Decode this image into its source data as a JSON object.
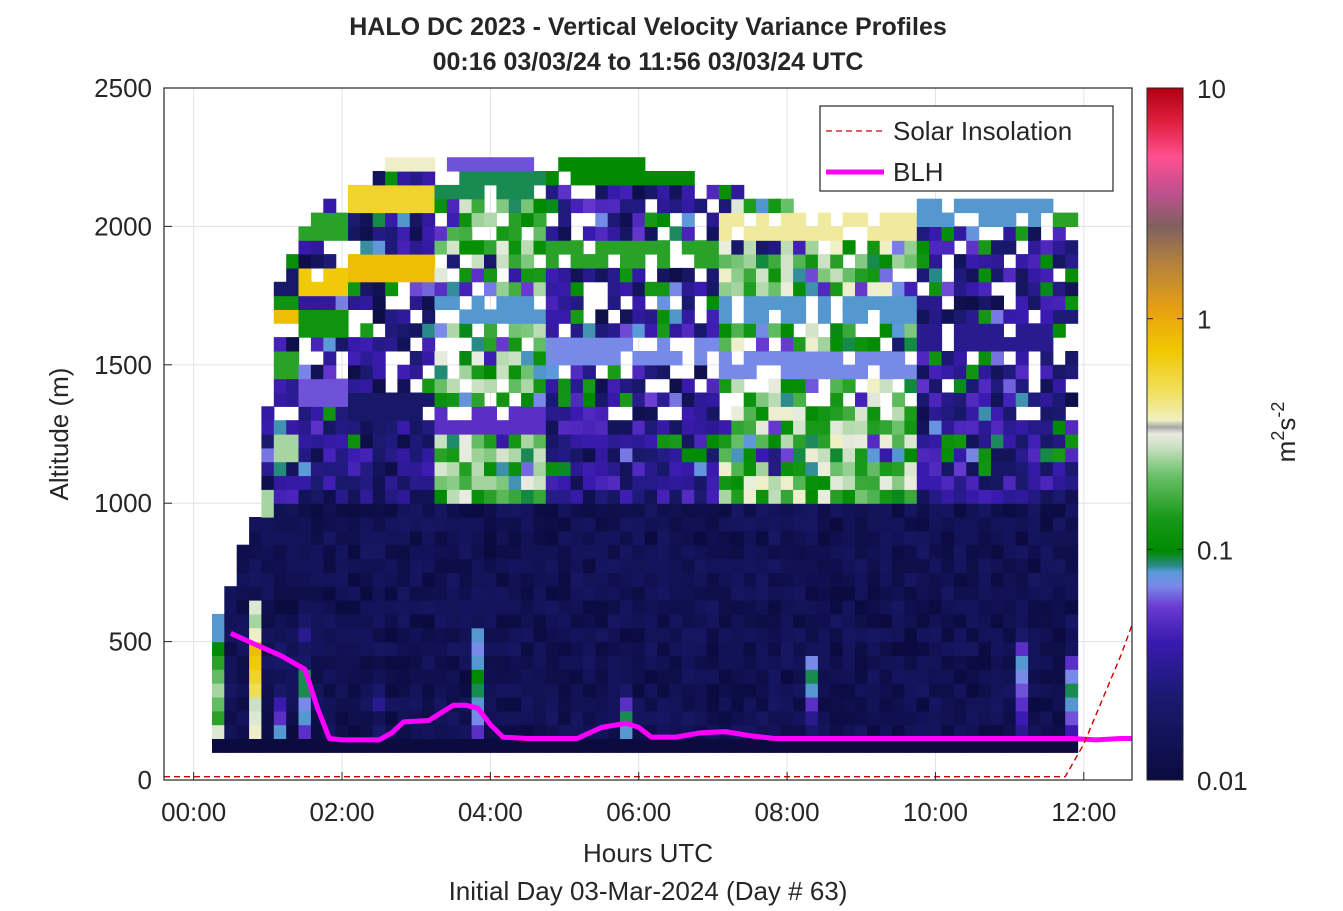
{
  "chart_data": {
    "type": "heatmap",
    "title_line1": "HALO DC 2023 - Vertical Velocity Variance Profiles",
    "title_line2": "00:16 03/03/24 to 11:56 03/03/24  UTC",
    "xlabel": "Hours UTC",
    "subtitle": "Initial Day 03-Mar-2024 (Day # 63)",
    "ylabel": "Altitude (m)",
    "colorbar_label": "m²s⁻²",
    "colorbar_label_base": "m",
    "colorbar_label_sup1": "2",
    "colorbar_label_mid": "s",
    "colorbar_label_sup2": "-2",
    "x_range_hours": [
      -0.4,
      12.65
    ],
    "y_range_m": [
      0,
      2500
    ],
    "x_ticks": [
      {
        "value": 0,
        "label": "00:00"
      },
      {
        "value": 2,
        "label": "02:00"
      },
      {
        "value": 4,
        "label": "04:00"
      },
      {
        "value": 6,
        "label": "06:00"
      },
      {
        "value": 8,
        "label": "08:00"
      },
      {
        "value": 10,
        "label": "10:00"
      },
      {
        "value": 12,
        "label": "12:00"
      }
    ],
    "y_ticks": [
      {
        "value": 0,
        "label": "0"
      },
      {
        "value": 500,
        "label": "500"
      },
      {
        "value": 1000,
        "label": "1000"
      },
      {
        "value": 1500,
        "label": "1500"
      },
      {
        "value": 2000,
        "label": "2000"
      },
      {
        "value": 2500,
        "label": "2500"
      }
    ],
    "colorbar_scale": "log",
    "colorbar_range": [
      0.01,
      10
    ],
    "colorbar_ticks": [
      {
        "value": 0.01,
        "label": "0.01"
      },
      {
        "value": 0.1,
        "label": "0.1"
      },
      {
        "value": 1,
        "label": "1"
      },
      {
        "value": 10,
        "label": "10"
      }
    ],
    "grid": true,
    "legend_position": "top-right",
    "legend": [
      {
        "name": "Solar Insolation",
        "style": "dashed",
        "color": "#cc0000"
      },
      {
        "name": "BLH",
        "style": "solid",
        "color": "#ff00ff"
      }
    ],
    "heatmap_summary": {
      "time_step_hours": 0.1667,
      "altitude_step_m": 50,
      "first_time_hours": 0.33,
      "last_time_hours": 11.92,
      "bottom_gate_center_m": 125,
      "background_variance": 0.01,
      "max_variance_observed": 0.9
    },
    "columns": [
      {
        "t": 0.33,
        "top": 575,
        "low": [
          0.3,
          0.15,
          0.2,
          0.25,
          0.2,
          0.15,
          0.1,
          0.08,
          0.08
        ],
        "mid": 0.01
      },
      {
        "t": 0.83,
        "top": 950,
        "low": [
          0.35,
          0.3,
          0.28,
          0.5,
          0.6,
          0.7,
          0.8,
          0.35,
          0.25,
          0.3
        ],
        "mid": 0.01,
        "upper": [
          [
            1000,
            0.25
          ],
          [
            1450,
            0.3
          ]
        ]
      },
      {
        "t": 1.17,
        "top": 1800,
        "low": [
          0.08,
          0.05,
          0.04,
          0.02,
          0.015,
          0.02,
          0.02,
          0.015,
          0.015
        ],
        "mid": 0.012,
        "upper": [
          [
            1200,
            0.25
          ],
          [
            1500,
            0.15
          ],
          [
            1700,
            0.8
          ],
          [
            1750,
            0.12
          ],
          [
            1800,
            0.02
          ]
        ]
      },
      {
        "t": 1.5,
        "top": 2000,
        "low": [
          0.05,
          0.08,
          0.07,
          0.09,
          0.09,
          0.02,
          0.018,
          0.03,
          0.02
        ],
        "mid": 0.011,
        "upper": [
          [
            1400,
            0.06
          ],
          [
            1650,
            0.12
          ],
          [
            1800,
            0.7
          ],
          [
            2000,
            0.15
          ]
        ]
      },
      {
        "t": 2.5,
        "top": 2250,
        "low": [
          0.02,
          0.015,
          0.03,
          0.02,
          0.015,
          0.012
        ],
        "mid": 0.011,
        "upper": [
          [
            1350,
            0.02
          ],
          [
            1850,
            0.8
          ],
          [
            2100,
            0.6
          ],
          [
            2250,
            0.35
          ]
        ]
      },
      {
        "t": 3.83,
        "top": 2250,
        "low": [
          0.05,
          0.07,
          0.08,
          0.09,
          0.1,
          0.08,
          0.07,
          0.08
        ],
        "mid": 0.08,
        "upper": [
          [
            1300,
            0.05
          ],
          [
            1700,
            0.08
          ],
          [
            2150,
            0.09
          ],
          [
            2250,
            0.06
          ]
        ]
      },
      {
        "t": 5.83,
        "top": 2250,
        "low": [
          0.08,
          0.09,
          0.05,
          0.02,
          0.015
        ],
        "mid": 0.012,
        "upper": [
          [
            1550,
            0.07
          ],
          [
            1900,
            0.15
          ],
          [
            2200,
            0.1
          ]
        ]
      },
      {
        "t": 8.33,
        "top": 2050,
        "low": [
          0.02,
          0.03,
          0.05,
          0.08,
          0.09,
          0.07
        ],
        "mid": 0.09,
        "upper": [
          [
            1500,
            0.07
          ],
          [
            1700,
            0.08
          ],
          [
            2000,
            0.4
          ]
        ]
      },
      {
        "t": 11.17,
        "top": 2100,
        "low": [
          0.03,
          0.04,
          0.05,
          0.06,
          0.07,
          0.08,
          0.05,
          0.02
        ],
        "mid": 0.012,
        "upper": [
          [
            1600,
            0.03
          ],
          [
            2050,
            0.08
          ]
        ]
      },
      {
        "t": 11.83,
        "top": 2050,
        "low": [
          0.04,
          0.06,
          0.08,
          0.09,
          0.07,
          0.05
        ],
        "mid": 0.012,
        "upper": [
          [
            1550,
            0.02
          ],
          [
            2050,
            0.15
          ]
        ]
      }
    ],
    "series": [
      {
        "name": "BLH",
        "x": [
          0.5,
          0.83,
          1.17,
          1.5,
          1.67,
          1.83,
          2.0,
          2.17,
          2.5,
          2.67,
          2.83,
          3.17,
          3.5,
          3.67,
          3.83,
          4.0,
          4.17,
          4.5,
          5.0,
          5.17,
          5.5,
          5.83,
          6.0,
          6.17,
          6.5,
          6.83,
          7.17,
          7.5,
          7.83,
          8.17,
          8.5,
          9.0,
          10.0,
          11.0,
          11.83,
          12.17,
          12.5,
          12.65
        ],
        "y": [
          530,
          490,
          450,
          400,
          260,
          150,
          145,
          145,
          145,
          170,
          210,
          215,
          270,
          270,
          260,
          200,
          155,
          150,
          150,
          150,
          190,
          205,
          190,
          155,
          155,
          170,
          175,
          160,
          150,
          150,
          150,
          150,
          150,
          150,
          150,
          145,
          150,
          150
        ]
      },
      {
        "name": "Solar Insolation",
        "x": [
          -0.4,
          11.5,
          11.75,
          12.0,
          12.25,
          12.5,
          12.65
        ],
        "y": [
          12,
          12,
          12,
          130,
          290,
          450,
          560
        ]
      }
    ]
  }
}
